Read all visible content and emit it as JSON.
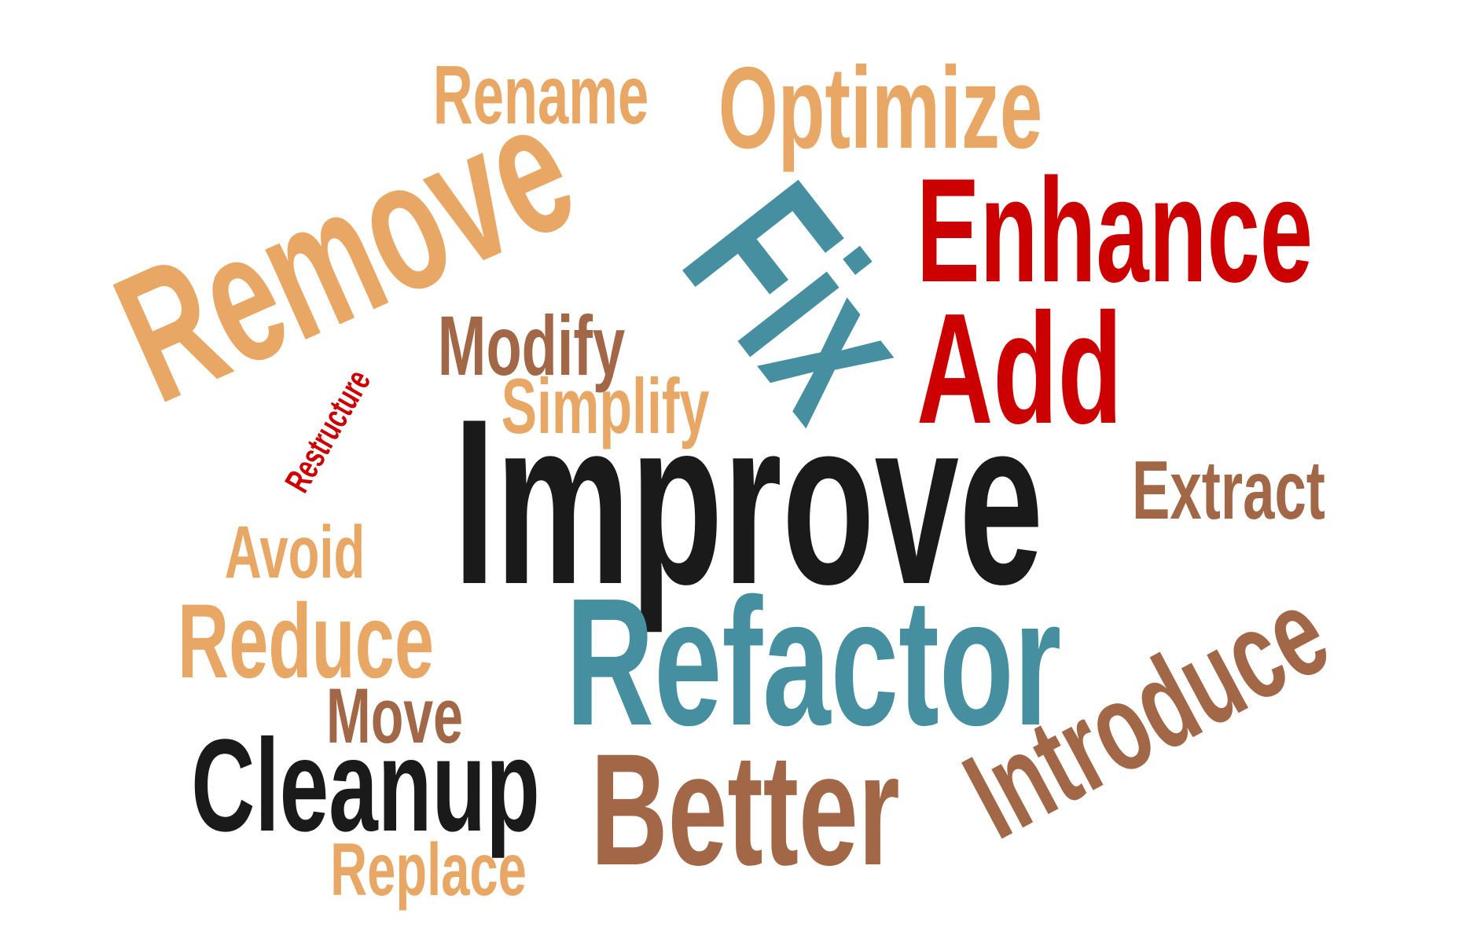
{
  "colors": {
    "light_orange": "#e9a765",
    "brown": "#a16746",
    "teal": "#468fa0",
    "red": "#cc0000",
    "black": "#1a1a1a"
  },
  "words": [
    {
      "text": "Rename",
      "color": "light_orange"
    },
    {
      "text": "Optimize",
      "color": "light_orange"
    },
    {
      "text": "Remove",
      "color": "light_orange"
    },
    {
      "text": "Fix",
      "color": "teal"
    },
    {
      "text": "Enhance",
      "color": "red"
    },
    {
      "text": "Add",
      "color": "red"
    },
    {
      "text": "Modify",
      "color": "brown"
    },
    {
      "text": "Simplify",
      "color": "light_orange"
    },
    {
      "text": "Restructure",
      "color": "red"
    },
    {
      "text": "Improve",
      "color": "black"
    },
    {
      "text": "Extract",
      "color": "brown"
    },
    {
      "text": "Avoid",
      "color": "light_orange"
    },
    {
      "text": "Reduce",
      "color": "light_orange"
    },
    {
      "text": "Refactor",
      "color": "teal"
    },
    {
      "text": "Move",
      "color": "brown"
    },
    {
      "text": "Introduce",
      "color": "brown"
    },
    {
      "text": "Cleanup",
      "color": "black"
    },
    {
      "text": "Better",
      "color": "brown"
    },
    {
      "text": "Replace",
      "color": "light_orange"
    }
  ]
}
